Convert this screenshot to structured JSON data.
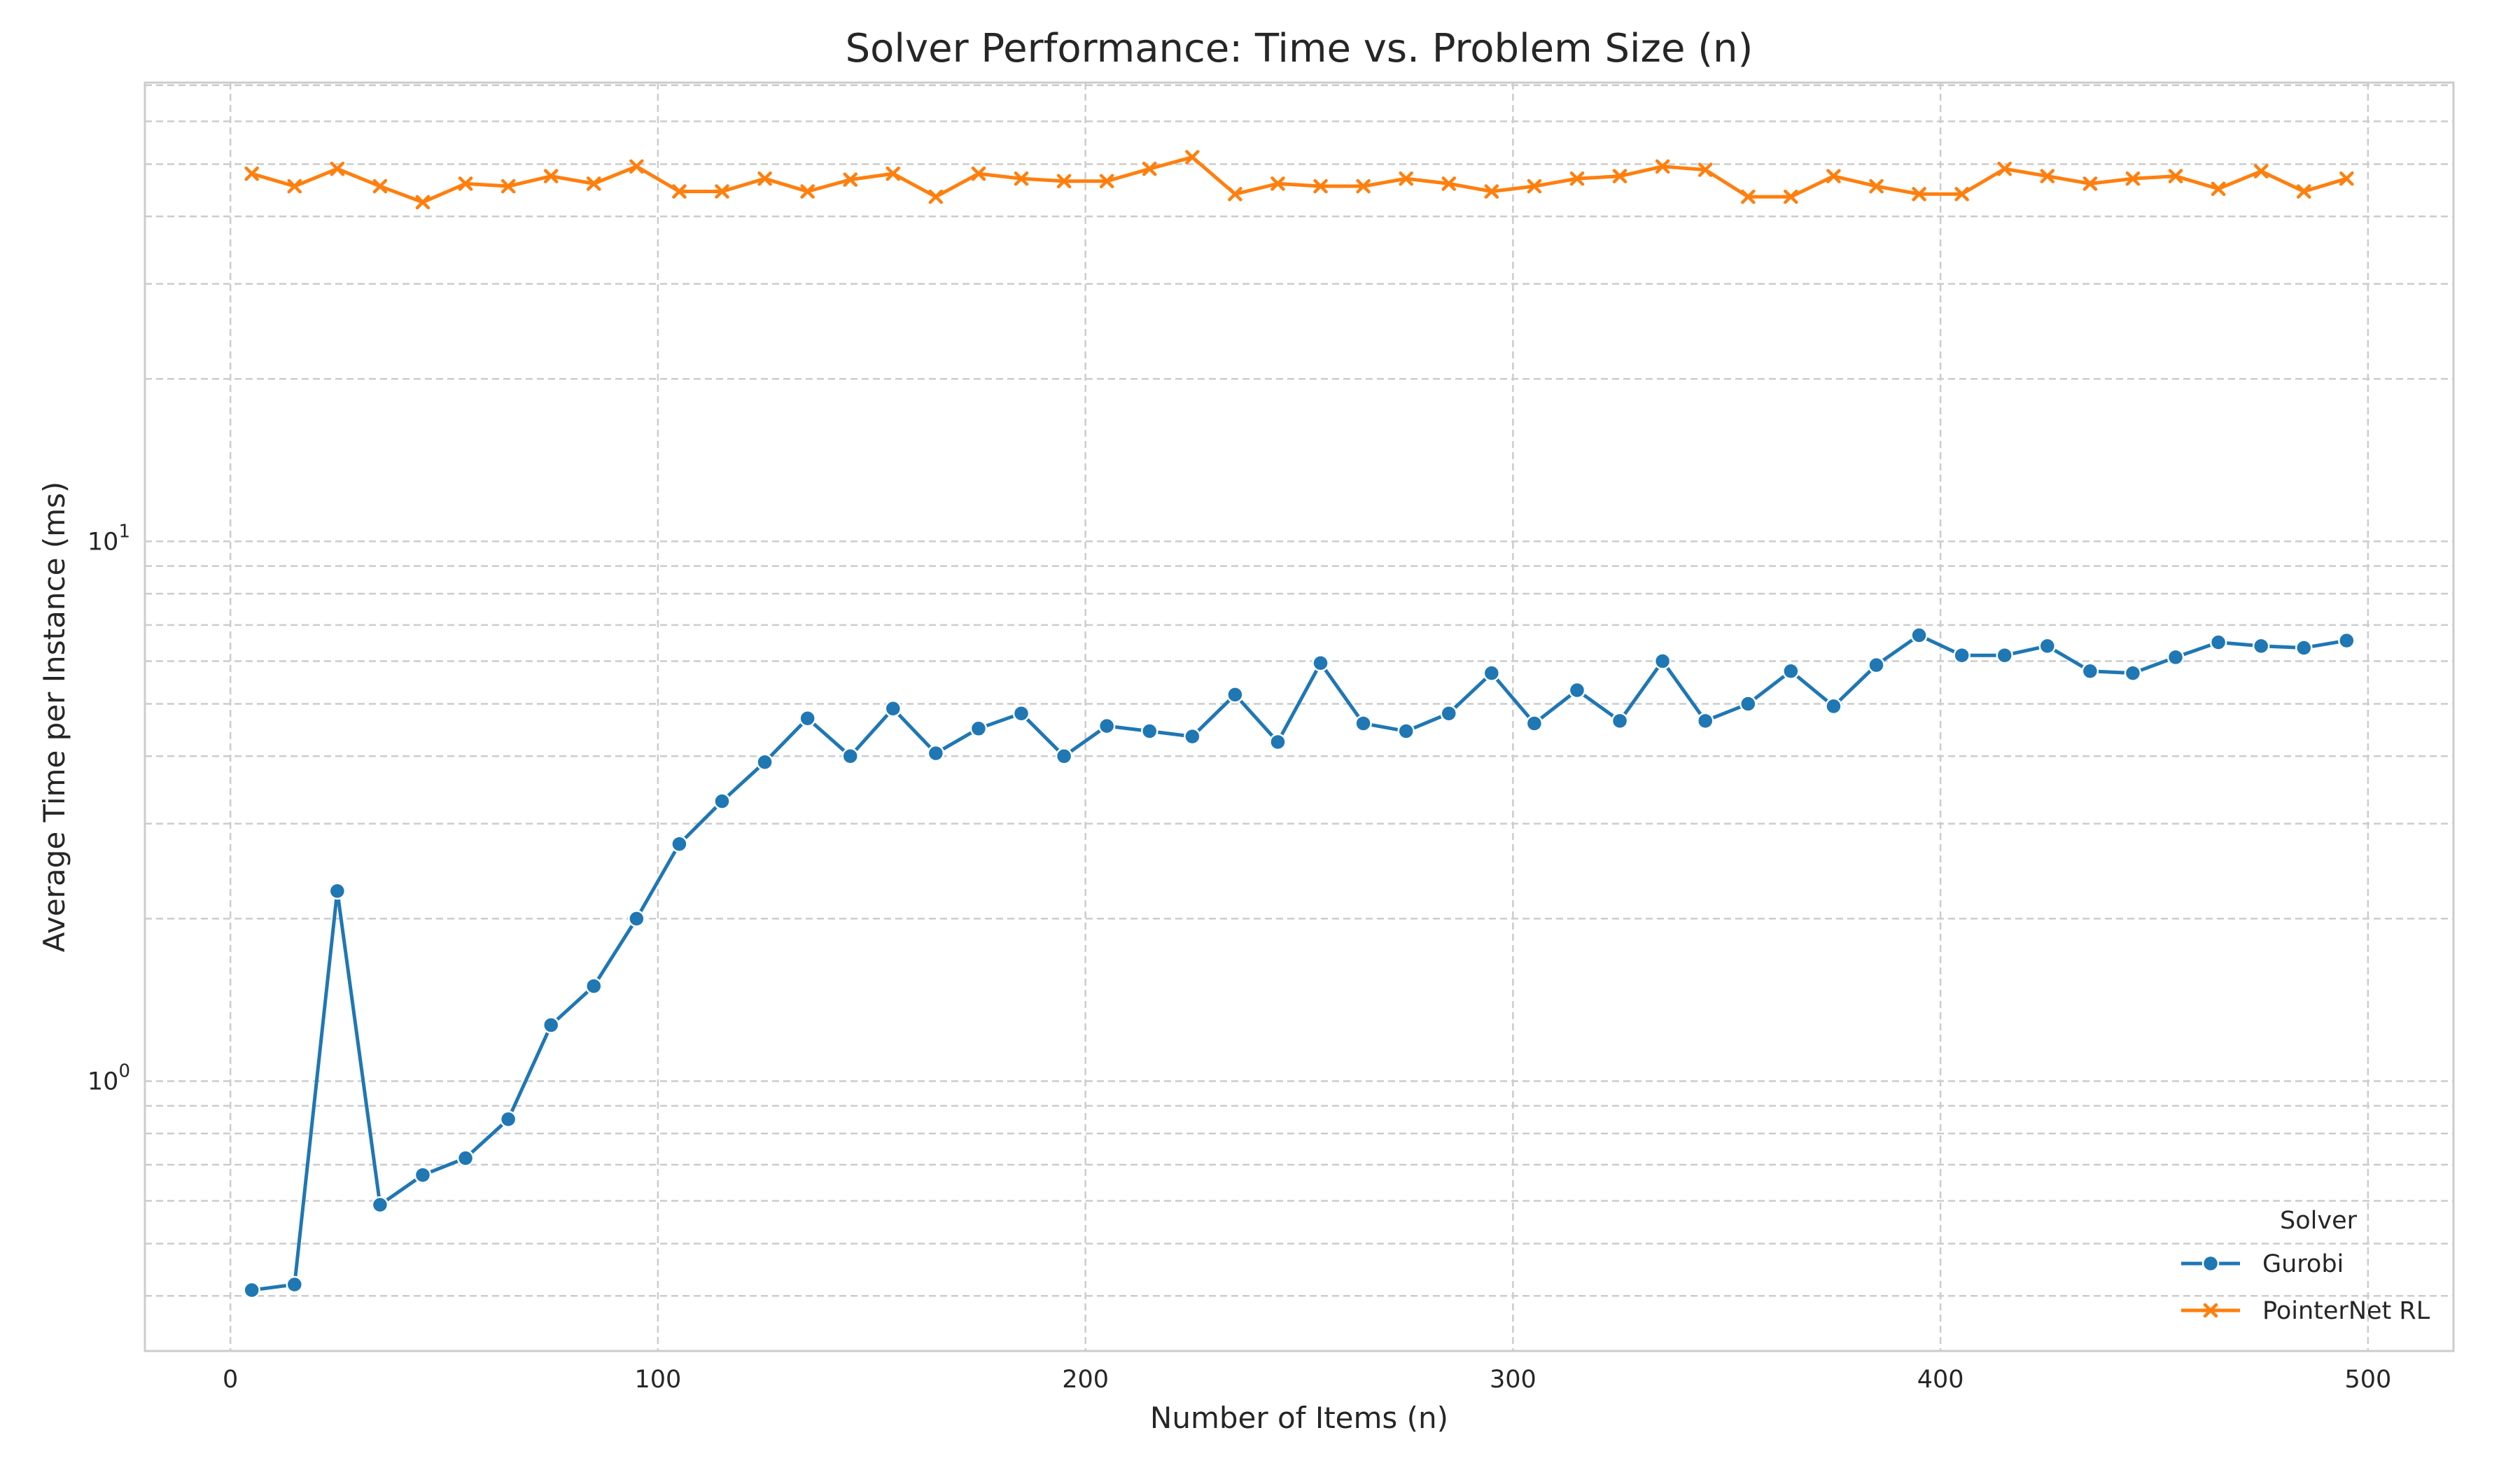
{
  "chart_data": {
    "type": "line",
    "title": "Solver Performance: Time vs. Problem Size (n)",
    "xlabel": "Number of Items (n)",
    "ylabel": "Average Time per Instance (ms)",
    "xlim": [
      -20,
      520
    ],
    "ylim_log10": [
      -0.5,
      1.85
    ],
    "yscale": "log",
    "x_ticks": [
      0,
      100,
      200,
      300,
      400,
      500
    ],
    "x_tick_labels": [
      "0",
      "100",
      "200",
      "300",
      "400",
      "500"
    ],
    "y_ticks": [
      1,
      10
    ],
    "y_tick_labels": [
      {
        "base": "10",
        "exp": "0"
      },
      {
        "base": "10",
        "exp": "1"
      }
    ],
    "grid": true,
    "legend": {
      "title": "Solver",
      "placement": "lower-right"
    },
    "x": [
      5,
      15,
      25,
      35,
      45,
      55,
      65,
      75,
      85,
      95,
      105,
      115,
      125,
      135,
      145,
      155,
      165,
      175,
      185,
      195,
      205,
      215,
      225,
      235,
      245,
      255,
      265,
      275,
      285,
      295,
      305,
      315,
      325,
      335,
      345,
      355,
      365,
      375,
      385,
      395,
      405,
      415,
      425,
      435,
      445,
      455,
      465,
      475,
      485,
      495
    ],
    "series": [
      {
        "name": "Gurobi",
        "color": "#1f77b4",
        "marker": "circle",
        "values": [
          0.41,
          0.42,
          2.25,
          0.59,
          0.67,
          0.72,
          0.85,
          1.27,
          1.5,
          2.0,
          2.75,
          3.3,
          3.9,
          4.7,
          4.0,
          4.9,
          4.05,
          4.5,
          4.8,
          4.0,
          4.55,
          4.45,
          4.35,
          5.2,
          4.25,
          5.95,
          4.6,
          4.45,
          4.8,
          5.7,
          4.6,
          5.3,
          4.65,
          6.0,
          4.65,
          5.0,
          5.75,
          4.95,
          5.9,
          6.7,
          6.15,
          6.15,
          6.4,
          5.75,
          5.7,
          6.1,
          6.5,
          6.4,
          6.35,
          6.55
        ]
      },
      {
        "name": "PointerNet RL",
        "color": "#ff7f0e",
        "marker": "x",
        "values": [
          48.0,
          45.5,
          49.0,
          45.5,
          42.5,
          46.0,
          45.5,
          47.5,
          46.0,
          49.5,
          44.5,
          44.5,
          47.0,
          44.5,
          46.8,
          48.0,
          43.5,
          48.0,
          47.0,
          46.5,
          46.5,
          49.0,
          51.5,
          44.0,
          46.0,
          45.5,
          45.5,
          47.0,
          46.0,
          44.5,
          45.5,
          47.0,
          47.5,
          49.5,
          48.8,
          43.5,
          43.5,
          47.5,
          45.5,
          44.0,
          44.0,
          49.0,
          47.5,
          46.0,
          47.0,
          47.5,
          45.0,
          48.5,
          44.5,
          47.0
        ]
      }
    ]
  }
}
